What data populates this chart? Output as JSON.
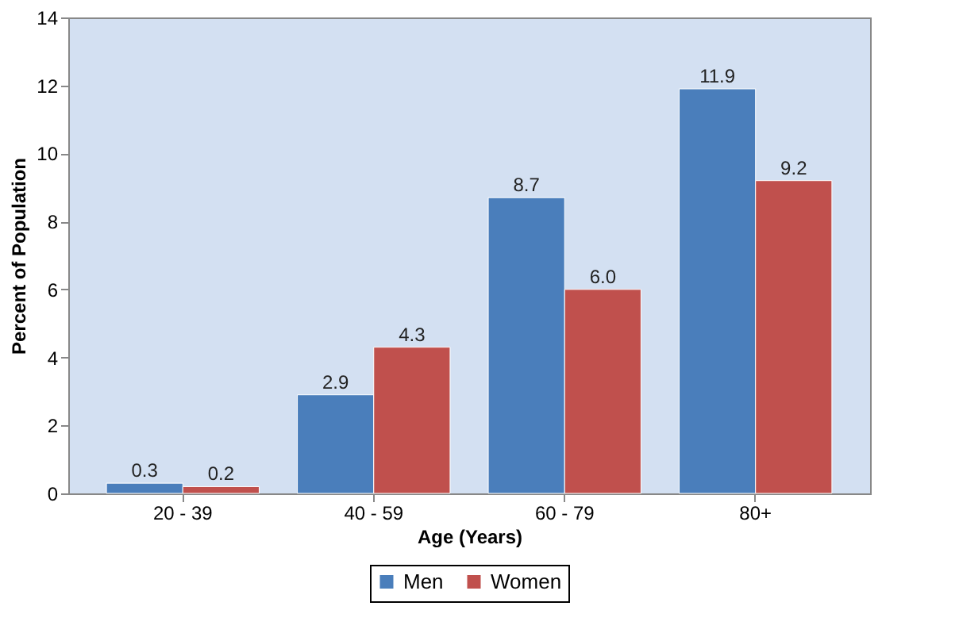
{
  "chart_data": {
    "type": "bar",
    "xlabel": "Age (Years)",
    "ylabel": "Percent of Population",
    "categories": [
      "20 - 39",
      "40 - 59",
      "60 - 79",
      "80+"
    ],
    "series": [
      {
        "name": "Men",
        "color": "#4a7ebb",
        "values": [
          0.3,
          2.9,
          8.7,
          11.9
        ],
        "value_labels": [
          "0.3",
          "2.9",
          "8.7",
          "11.9"
        ]
      },
      {
        "name": "Women",
        "color": "#c0504d",
        "values": [
          0.2,
          4.3,
          6.0,
          9.2
        ],
        "value_labels": [
          "0.2",
          "4.3",
          "6.0",
          "9.2"
        ]
      }
    ],
    "ylim": [
      0,
      14
    ],
    "yticks": [
      0,
      2,
      4,
      6,
      8,
      10,
      12,
      14
    ],
    "grid": false,
    "legend": "bottom"
  }
}
